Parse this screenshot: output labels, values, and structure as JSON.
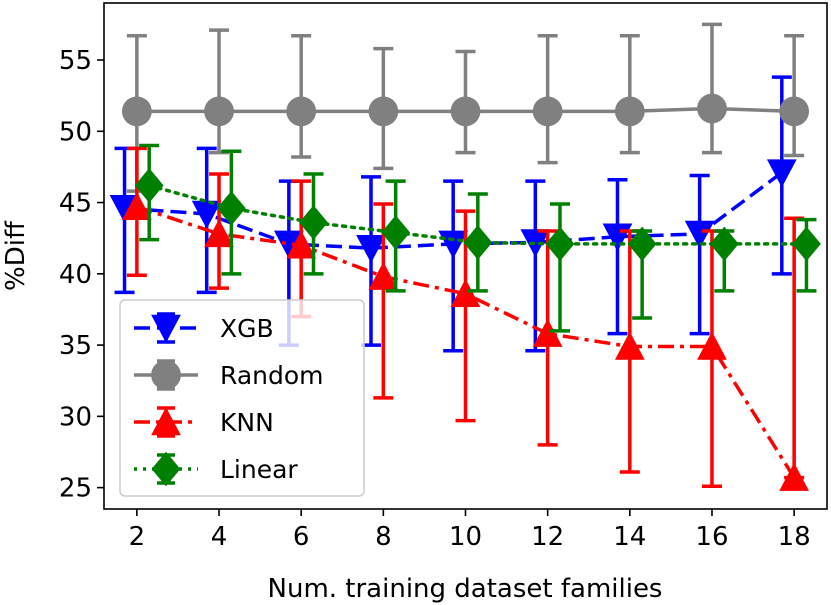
{
  "chart_data": {
    "type": "line",
    "title": "",
    "xlabel": "Num. training dataset families",
    "ylabel": "%Diff",
    "xlim": [
      1.2,
      18.8
    ],
    "ylim": [
      23.5,
      59.0
    ],
    "xticks": [
      2,
      4,
      6,
      8,
      10,
      12,
      14,
      16,
      18
    ],
    "yticks": [
      25,
      30,
      35,
      40,
      45,
      50,
      55
    ],
    "legend_position": "lower-left",
    "series": [
      {
        "name": "XGB",
        "color": "#0000ff",
        "marker": "triangle-down",
        "linestyle": "dashed",
        "offset": -0.3,
        "x": [
          2,
          4,
          6,
          8,
          10,
          12,
          14,
          16,
          18
        ],
        "y": [
          44.6,
          44.2,
          42.1,
          41.8,
          42.1,
          42.2,
          42.6,
          42.8,
          47.1
        ],
        "err_low": [
          38.7,
          38.7,
          35.0,
          35.0,
          34.6,
          34.6,
          35.8,
          35.8,
          40.0
        ],
        "err_high": [
          48.8,
          48.8,
          46.5,
          46.8,
          46.5,
          46.5,
          46.6,
          46.9,
          53.8
        ]
      },
      {
        "name": "Random",
        "color": "#808080",
        "marker": "circle",
        "linestyle": "solid",
        "offset": 0.0,
        "x": [
          2,
          4,
          6,
          8,
          10,
          12,
          14,
          16,
          18
        ],
        "y": [
          51.4,
          51.4,
          51.4,
          51.4,
          51.4,
          51.4,
          51.4,
          51.6,
          51.4
        ],
        "err_low": [
          45.8,
          48.5,
          48.2,
          47.4,
          48.5,
          47.8,
          48.5,
          48.5,
          48.3
        ],
        "err_high": [
          56.7,
          57.1,
          56.7,
          55.8,
          55.6,
          56.7,
          56.7,
          57.5,
          56.7
        ]
      },
      {
        "name": "KNN",
        "color": "#ff0000",
        "marker": "triangle-up",
        "linestyle": "dashdot",
        "offset": 0.0,
        "x": [
          2,
          4,
          6,
          8,
          10,
          12,
          14,
          16,
          18
        ],
        "y": [
          44.7,
          42.8,
          42.0,
          39.8,
          38.6,
          35.8,
          34.9,
          34.9,
          25.7
        ],
        "err_low": [
          39.9,
          39.0,
          37.0,
          31.3,
          29.7,
          28.0,
          26.1,
          25.1,
          25.7
        ],
        "err_high": [
          48.8,
          47.0,
          46.5,
          44.9,
          44.4,
          43.0,
          43.0,
          43.0,
          43.9
        ]
      },
      {
        "name": "Linear",
        "color": "#008000",
        "marker": "diamond",
        "linestyle": "dotted",
        "offset": 0.3,
        "x": [
          2,
          4,
          6,
          8,
          10,
          12,
          14,
          16,
          18
        ],
        "y": [
          46.2,
          44.6,
          43.6,
          42.9,
          42.2,
          42.1,
          42.1,
          42.1,
          42.1
        ],
        "err_low": [
          42.4,
          40.0,
          40.0,
          38.8,
          38.8,
          36.0,
          36.9,
          38.8,
          38.8
        ],
        "err_high": [
          49.0,
          48.6,
          47.0,
          46.5,
          45.6,
          44.9,
          43.0,
          43.0,
          43.8
        ]
      }
    ]
  }
}
